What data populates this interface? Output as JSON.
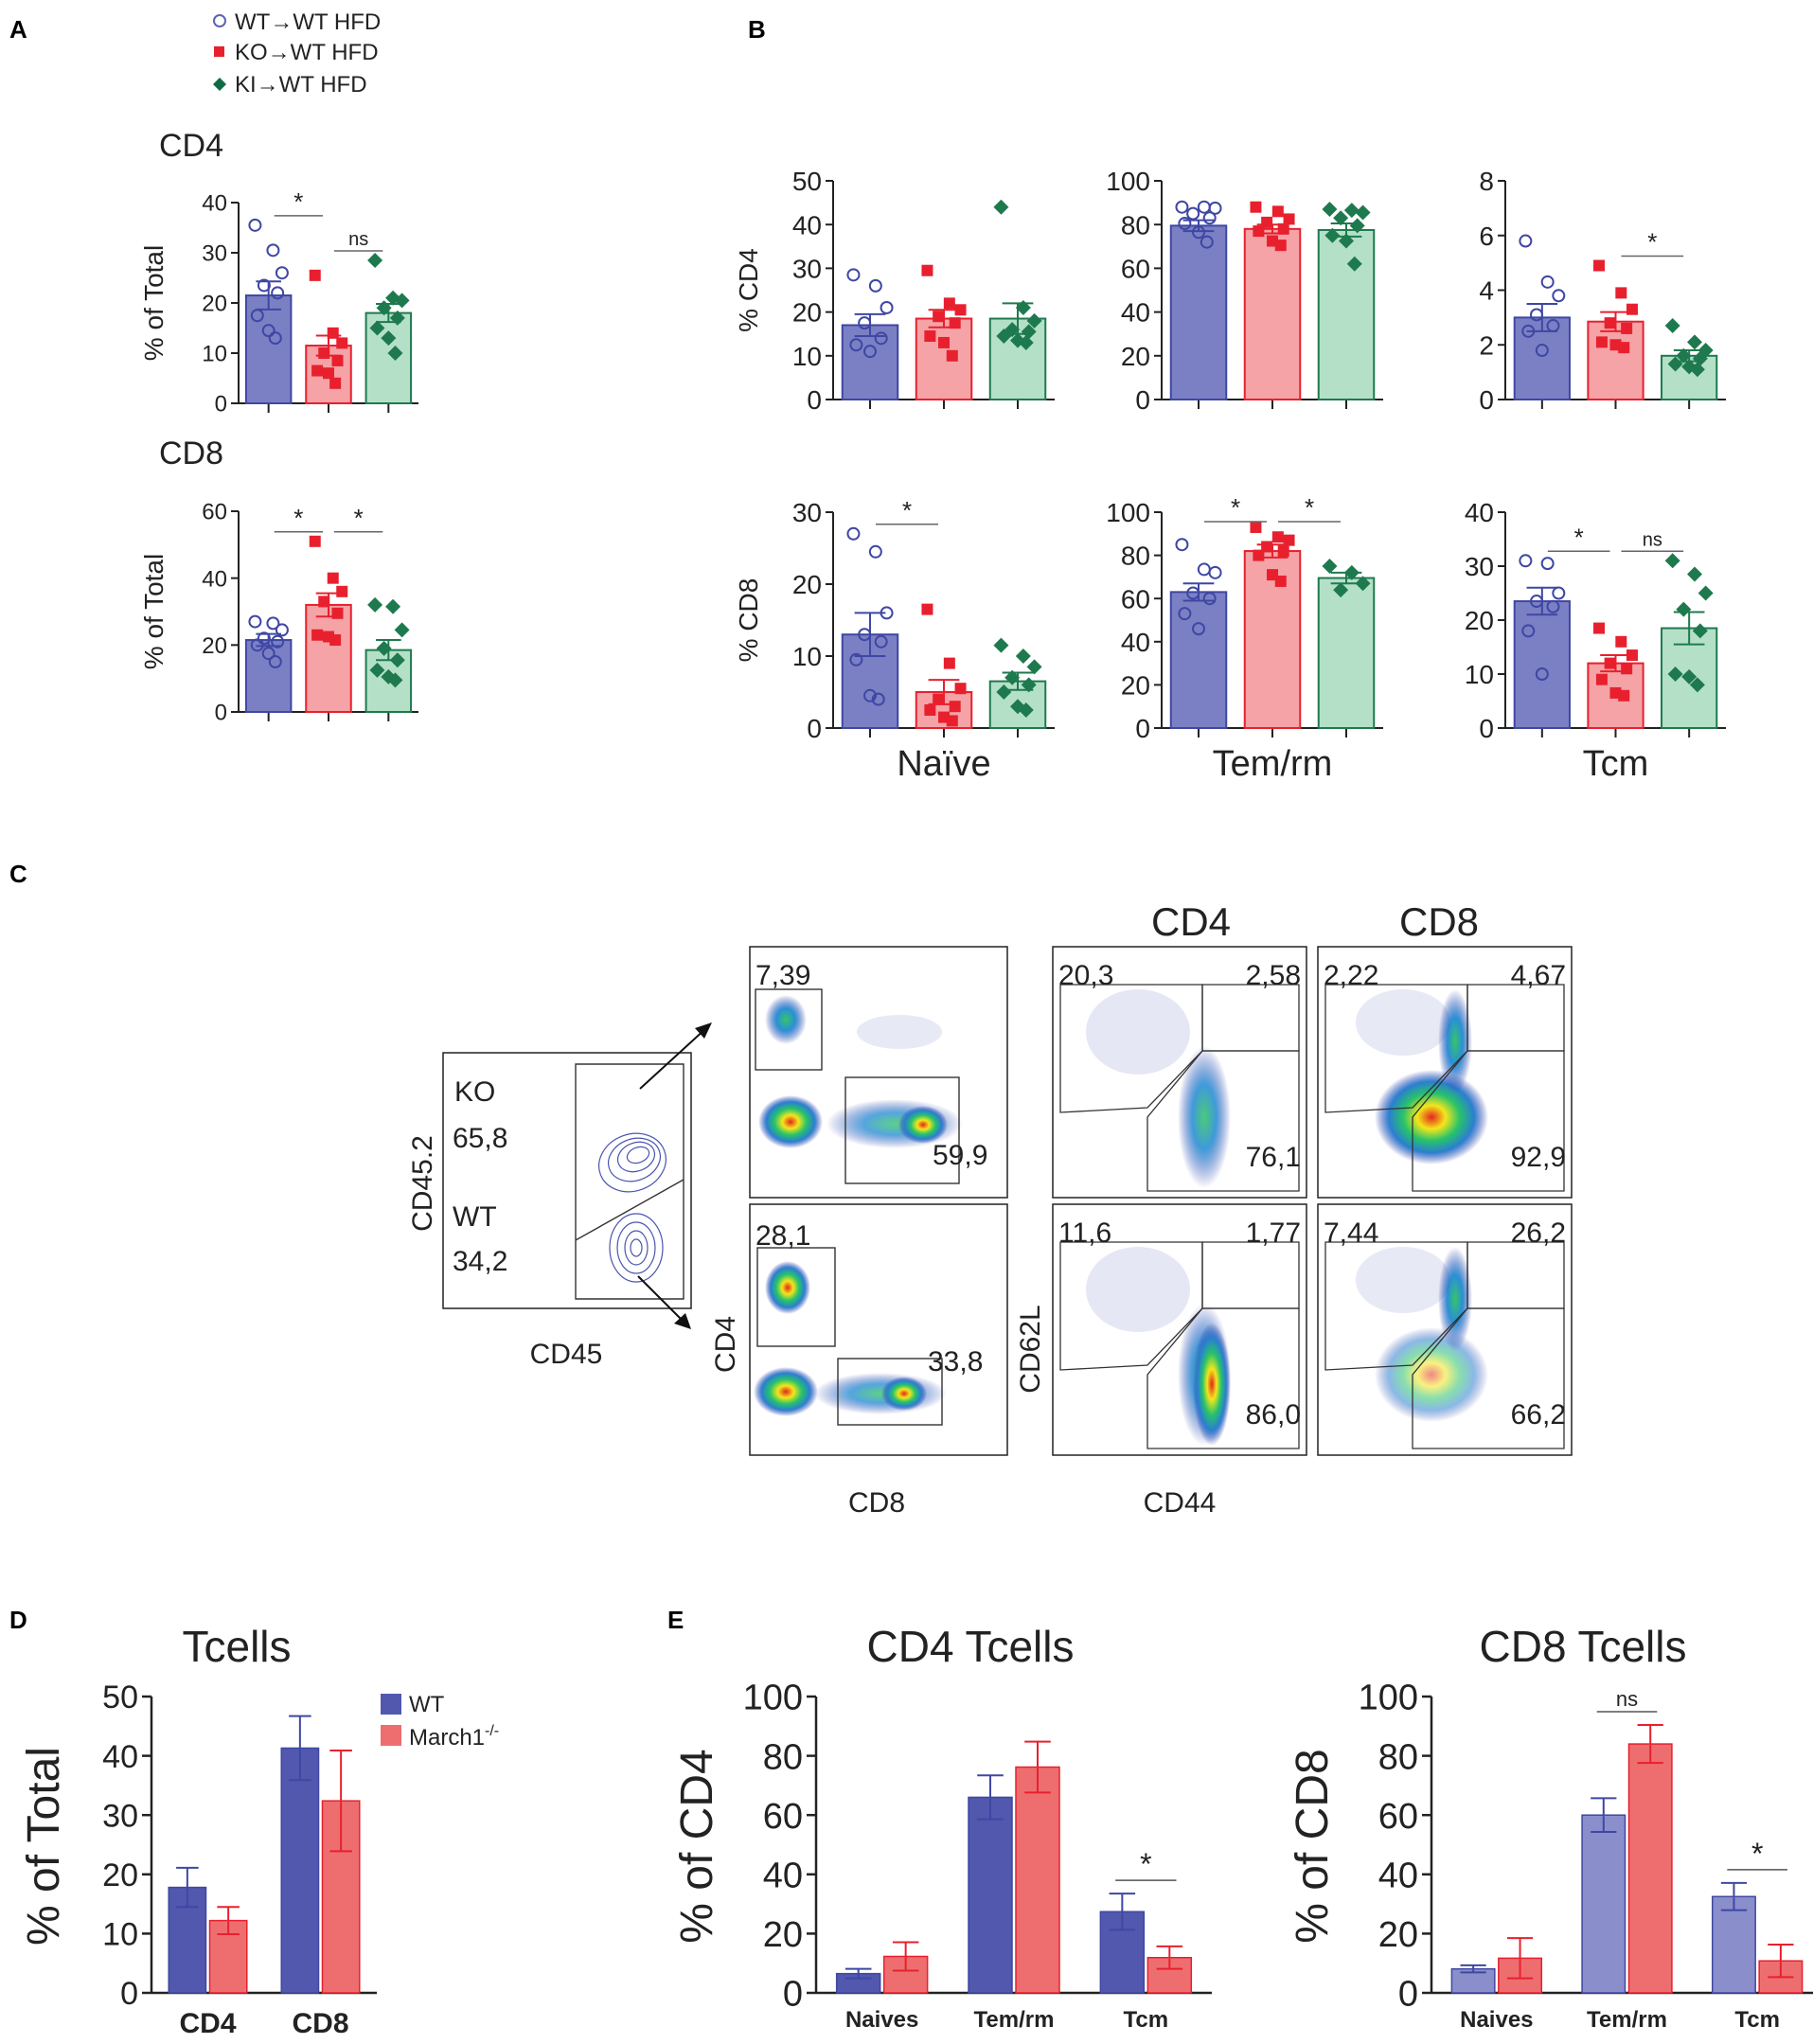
{
  "panel_letters": {
    "a": "A",
    "b": "B",
    "c": "C",
    "d": "D",
    "e": "E"
  },
  "legend_main": [
    {
      "label": "WT→WT HFD",
      "marker": "circle",
      "color": "#5b63b5"
    },
    {
      "label": "KO→WT HFD",
      "marker": "square",
      "color": "#e8202e"
    },
    {
      "label": "KI→WT HFD",
      "marker": "diamond",
      "color": "#0f6b47"
    }
  ],
  "colors": {
    "wt": "#7b80c4",
    "wt_stroke": "#3f47a3",
    "ko": "#f5a3a6",
    "ko_stroke": "#e8202e",
    "ki": "#b5e0c8",
    "ki_stroke": "#1e7a4e",
    "dark_wt": "#5158ad",
    "dark_ko": "#ee6e70"
  },
  "chart_data": [
    {
      "id": "A_cd4",
      "type": "bar",
      "panel": "A",
      "title": "CD4",
      "ylabel": "% of Total",
      "ylim": [
        0,
        40
      ],
      "yticks": [
        "0",
        "10",
        "20",
        "30",
        "40"
      ],
      "series": [
        {
          "name": "WT→WT HFD",
          "mean": 21.5,
          "sem": 2.8,
          "points": [
            35.5,
            30.5,
            26,
            23.5,
            22,
            17.5,
            14.5,
            13
          ]
        },
        {
          "name": "KO→WT HFD",
          "mean": 11.5,
          "sem": 2,
          "points": [
            25.5,
            14,
            12,
            10,
            8.5,
            6.5,
            6,
            4
          ]
        },
        {
          "name": "KI→WT HFD",
          "mean": 18,
          "sem": 1.8,
          "points": [
            28.5,
            21,
            20.5,
            19,
            17,
            15,
            13,
            10
          ]
        }
      ],
      "sig": [
        {
          "from": 0,
          "to": 1,
          "label": "*"
        },
        {
          "from": 1,
          "to": 2,
          "label": "ns"
        }
      ]
    },
    {
      "id": "A_cd8",
      "type": "bar",
      "panel": "A",
      "title": "CD8",
      "ylabel": "% of Total",
      "ylim": [
        0,
        60
      ],
      "yticks": [
        "0",
        "20",
        "40",
        "60"
      ],
      "series": [
        {
          "name": "WT→WT HFD",
          "mean": 21.5,
          "sem": 1.8,
          "points": [
            27,
            26.5,
            24.5,
            22,
            21,
            20,
            17.5,
            15
          ]
        },
        {
          "name": "KO→WT HFD",
          "mean": 32,
          "sem": 3.5,
          "points": [
            51,
            40,
            36,
            33,
            29.5,
            23,
            22.5,
            21.5
          ]
        },
        {
          "name": "KI→WT HFD",
          "mean": 18.5,
          "sem": 3,
          "points": [
            32,
            31.5,
            24.5,
            19,
            15.5,
            12.5,
            10.5,
            9.5
          ]
        }
      ],
      "sig": [
        {
          "from": 0,
          "to": 1,
          "label": "*"
        },
        {
          "from": 1,
          "to": 2,
          "label": "*"
        }
      ]
    },
    {
      "id": "B_cd4_naive",
      "type": "bar",
      "panel": "B",
      "ylabel": "% CD4",
      "ylim": [
        0,
        50
      ],
      "yticks": [
        "0",
        "10",
        "20",
        "30",
        "40",
        "50"
      ],
      "series": [
        {
          "name": "WT→WT HFD",
          "mean": 17,
          "sem": 2.5,
          "points": [
            28.5,
            26,
            21,
            17.5,
            14,
            12.5,
            11
          ]
        },
        {
          "name": "KO→WT HFD",
          "mean": 18.5,
          "sem": 2,
          "points": [
            29.5,
            22,
            20.5,
            19,
            17.5,
            14.5,
            13,
            10
          ]
        },
        {
          "name": "KI→WT HFD",
          "mean": 18.5,
          "sem": 3.5,
          "points": [
            44,
            21,
            18,
            16,
            15.5,
            14.5,
            13.5,
            13
          ]
        }
      ],
      "sig": []
    },
    {
      "id": "B_cd4_tem",
      "type": "bar",
      "panel": "B",
      "ylim": [
        0,
        100
      ],
      "yticks": [
        "0",
        "20",
        "40",
        "60",
        "80",
        "100"
      ],
      "series": [
        {
          "name": "WT→WT HFD",
          "mean": 79.5,
          "sem": 2.5,
          "points": [
            88,
            88,
            87.5,
            85,
            83,
            80.5,
            76.5,
            72
          ]
        },
        {
          "name": "KO→WT HFD",
          "mean": 78,
          "sem": 2,
          "points": [
            88,
            86,
            82.5,
            81,
            78,
            77,
            72.5,
            70.5
          ]
        },
        {
          "name": "KI→WT HFD",
          "mean": 77.5,
          "sem": 3,
          "points": [
            87,
            86.5,
            85.5,
            83,
            79.5,
            75,
            72.5,
            62
          ]
        }
      ],
      "sig": []
    },
    {
      "id": "B_cd4_tcm",
      "type": "bar",
      "panel": "B",
      "ylim": [
        0,
        8
      ],
      "yticks": [
        "0",
        "2",
        "4",
        "6",
        "8"
      ],
      "series": [
        {
          "name": "WT→WT HFD",
          "mean": 3,
          "sem": 0.5,
          "points": [
            5.8,
            4.3,
            3.8,
            3.1,
            2.7,
            2.5,
            1.8
          ]
        },
        {
          "name": "KO→WT HFD",
          "mean": 2.85,
          "sem": 0.35,
          "points": [
            4.9,
            3.9,
            3.3,
            2.8,
            2.6,
            2.1,
            2,
            1.9
          ]
        },
        {
          "name": "KI→WT HFD",
          "mean": 1.6,
          "sem": 0.2,
          "points": [
            2.7,
            2.1,
            1.8,
            1.6,
            1.5,
            1.3,
            1.2,
            1.1
          ]
        }
      ],
      "sig": [
        {
          "from": 1,
          "to": 2,
          "label": "*"
        }
      ]
    },
    {
      "id": "B_cd8_naive",
      "type": "bar",
      "panel": "B",
      "ylabel": "% CD8",
      "xlabel": "Naïve",
      "ylim": [
        0,
        30
      ],
      "yticks": [
        "0",
        "10",
        "20",
        "30"
      ],
      "series": [
        {
          "name": "WT→WT HFD",
          "mean": 13,
          "sem": 3,
          "points": [
            27,
            24.5,
            16,
            13,
            12,
            9.5,
            4.5,
            4
          ]
        },
        {
          "name": "KO→WT HFD",
          "mean": 5,
          "sem": 1.7,
          "points": [
            16.5,
            9,
            5.5,
            4,
            3,
            2.5,
            1.5,
            1
          ]
        },
        {
          "name": "KI→WT HFD",
          "mean": 6.5,
          "sem": 1.2,
          "points": [
            11.5,
            10,
            8.5,
            7,
            6,
            5,
            3,
            2.5
          ]
        }
      ],
      "sig": [
        {
          "from": 0,
          "to": 1,
          "label": "*"
        }
      ]
    },
    {
      "id": "B_cd8_tem",
      "type": "bar",
      "panel": "B",
      "xlabel": "Tem/rm",
      "ylim": [
        0,
        100
      ],
      "yticks": [
        "0",
        "20",
        "40",
        "60",
        "80",
        "100"
      ],
      "series": [
        {
          "name": "WT→WT HFD",
          "mean": 63,
          "sem": 4,
          "points": [
            85,
            73.5,
            72,
            62.5,
            60,
            53,
            46
          ]
        },
        {
          "name": "KO→WT HFD",
          "mean": 82,
          "sem": 3,
          "points": [
            93,
            88.5,
            87,
            84,
            82,
            80,
            71,
            68
          ]
        },
        {
          "name": "KI→WT HFD",
          "mean": 69.5,
          "sem": 2.5,
          "points": [
            75,
            72,
            67,
            64
          ]
        }
      ],
      "sig": [
        {
          "from": 0,
          "to": 1,
          "label": "*"
        },
        {
          "from": 1,
          "to": 2,
          "label": "*"
        }
      ]
    },
    {
      "id": "B_cd8_tcm",
      "type": "bar",
      "panel": "B",
      "xlabel": "Tcm",
      "ylim": [
        0,
        40
      ],
      "yticks": [
        "0",
        "10",
        "20",
        "30",
        "40"
      ],
      "series": [
        {
          "name": "WT→WT HFD",
          "mean": 23.5,
          "sem": 2.5,
          "points": [
            31,
            30.5,
            25,
            23.5,
            22.5,
            18,
            10
          ]
        },
        {
          "name": "KO→WT HFD",
          "mean": 12,
          "sem": 1.5,
          "points": [
            18.5,
            16,
            13.5,
            12,
            11,
            9,
            6.5,
            6
          ]
        },
        {
          "name": "KI→WT HFD",
          "mean": 18.5,
          "sem": 3,
          "points": [
            31,
            28.5,
            25,
            22,
            18,
            10,
            9.5,
            8
          ]
        }
      ],
      "sig": [
        {
          "from": 0,
          "to": 1,
          "label": "*"
        },
        {
          "from": 1,
          "to": 2,
          "label": "ns"
        }
      ]
    },
    {
      "id": "D",
      "type": "bar",
      "panel": "D",
      "title": "Tcells",
      "ylabel": "% of Total",
      "ylim": [
        0,
        50
      ],
      "yticks": [
        "0",
        "10",
        "20",
        "30",
        "40",
        "50"
      ],
      "categories": [
        "CD4",
        "CD8"
      ],
      "series_names": [
        "WT",
        "March1"
      ],
      "series_sup": [
        "",
        "-/-"
      ],
      "values": [
        [
          17.8,
          12.2
        ],
        [
          41.3,
          32.4
        ]
      ],
      "errors": [
        [
          3.3,
          2.3
        ],
        [
          5.4,
          8.5
        ]
      ],
      "sig": []
    },
    {
      "id": "E_cd4",
      "type": "bar",
      "panel": "E",
      "title": "CD4 Tcells",
      "ylabel": "% of CD4",
      "ylim": [
        0,
        100
      ],
      "yticks": [
        "0",
        "20",
        "40",
        "60",
        "80",
        "100"
      ],
      "categories": [
        "Naives",
        "Tem/rm",
        "Tcm"
      ],
      "values": [
        [
          6.5,
          12.3
        ],
        [
          66,
          76.2
        ],
        [
          27.4,
          11.9
        ]
      ],
      "errors": [
        [
          1.6,
          4.8
        ],
        [
          7.4,
          8.6
        ],
        [
          6.1,
          3.8
        ]
      ],
      "sig": [
        {
          "cat": 2,
          "label": "*"
        }
      ]
    },
    {
      "id": "E_cd8",
      "type": "bar",
      "panel": "E",
      "title": "CD8 Tcells",
      "ylabel": "% of CD8",
      "ylim": [
        0,
        100
      ],
      "yticks": [
        "0",
        "20",
        "40",
        "60",
        "80",
        "100"
      ],
      "categories": [
        "Naives",
        "Tem/rm",
        "Tcm"
      ],
      "values": [
        [
          8.1,
          11.7
        ],
        [
          60,
          84
        ]
      ],
      "values_tcm": [
        32.5,
        10.8
      ],
      "errors": [
        [
          1.2,
          6.8
        ],
        [
          5.7,
          6.4
        ]
      ],
      "errors_tcm": [
        4.6,
        5.5
      ],
      "sig": [
        {
          "cat": 1,
          "label": "ns"
        },
        {
          "cat": 2,
          "label": "*"
        }
      ]
    }
  ],
  "flow": {
    "gate1": {
      "ylabel": "CD45.2",
      "xlabel": "CD45",
      "ko_label": "KO",
      "ko_value": "65,8",
      "wt_label": "WT",
      "wt_value": "34,2"
    },
    "gate2": {
      "ylabel": "CD4",
      "xlabel": "CD8",
      "top_cd4": "7,39",
      "top_cd8": "59,9",
      "bot_cd4": "28,1",
      "bot_cd8": "33,8"
    },
    "gate3": {
      "ylabel": "CD62L",
      "xlabel": "CD44",
      "title_cd4": "CD4",
      "title_cd8": "CD8",
      "cd4_top": {
        "tl": "20,3",
        "tr": "2,58",
        "br": "76,1"
      },
      "cd8_top": {
        "tl": "2,22",
        "tr": "4,67",
        "br": "92,9"
      },
      "cd4_bot": {
        "tl": "11,6",
        "tr": "1,77",
        "br": "86,0"
      },
      "cd8_bot": {
        "tl": "7,44",
        "tr": "26,2",
        "br": "66,2"
      }
    }
  }
}
